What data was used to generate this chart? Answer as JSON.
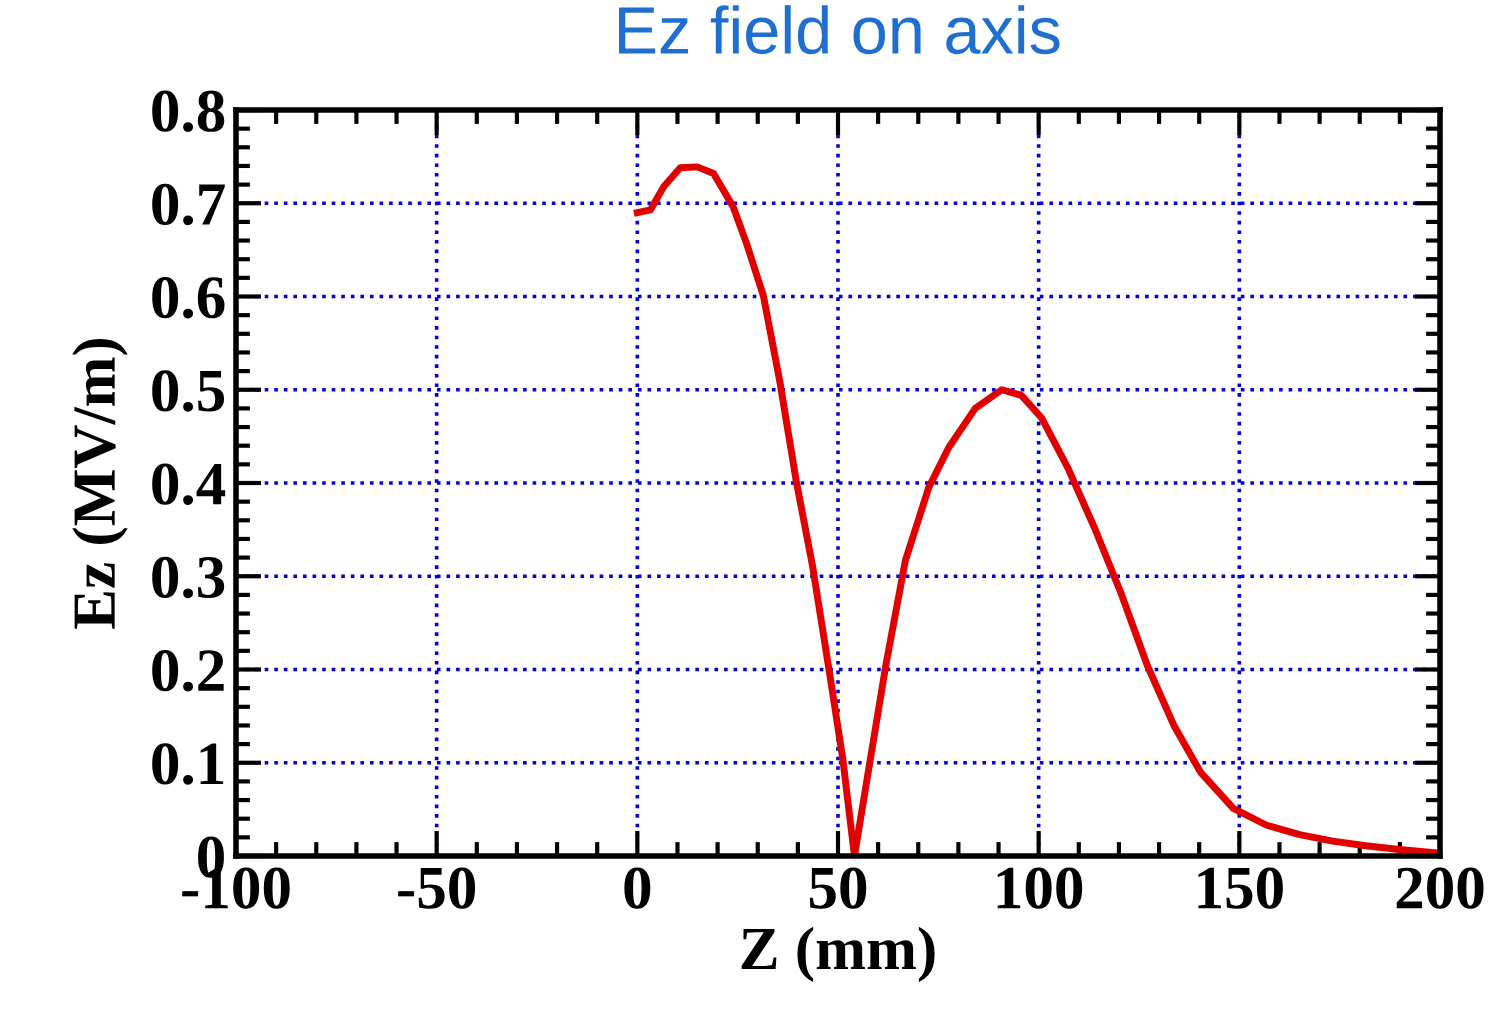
{
  "chart_data": {
    "type": "line",
    "title": "Ez field on axis",
    "xlabel": "Z (mm)",
    "ylabel": "Ez (MV/m)",
    "xlim": [
      -100,
      200
    ],
    "xticks": [
      -100,
      -50,
      0,
      50,
      100,
      150,
      200
    ],
    "ylim": [
      0,
      0.8
    ],
    "yticks": [
      0,
      0.1,
      0.2,
      0.3,
      0.4,
      0.5,
      0.6,
      0.7,
      0.8
    ],
    "grid": true,
    "line_style": "solid",
    "marker": "none",
    "series": [
      {
        "color": "#e00000",
        "x": [
          0,
          3.3,
          6.6,
          10.7,
          14.9,
          19,
          23.9,
          27.2,
          31.4,
          35.5,
          39.6,
          43.7,
          47.9,
          51.2,
          54.1,
          57.8,
          61.9,
          66.8,
          72.6,
          77.6,
          84.2,
          90.8,
          95.7,
          100.7,
          107.3,
          113.9,
          120.5,
          127.1,
          133.7,
          140.3,
          148.5,
          156.8,
          165,
          173.3,
          181.5,
          189.8,
          200
        ],
        "values": [
          0.69,
          0.693,
          0.718,
          0.738,
          0.739,
          0.732,
          0.696,
          0.657,
          0.601,
          0.509,
          0.402,
          0.31,
          0.196,
          0.104,
          0.0,
          0.097,
          0.204,
          0.317,
          0.395,
          0.438,
          0.48,
          0.5,
          0.494,
          0.47,
          0.416,
          0.352,
          0.282,
          0.204,
          0.14,
          0.09,
          0.051,
          0.033,
          0.023,
          0.016,
          0.011,
          0.007,
          0.003
        ]
      }
    ]
  }
}
